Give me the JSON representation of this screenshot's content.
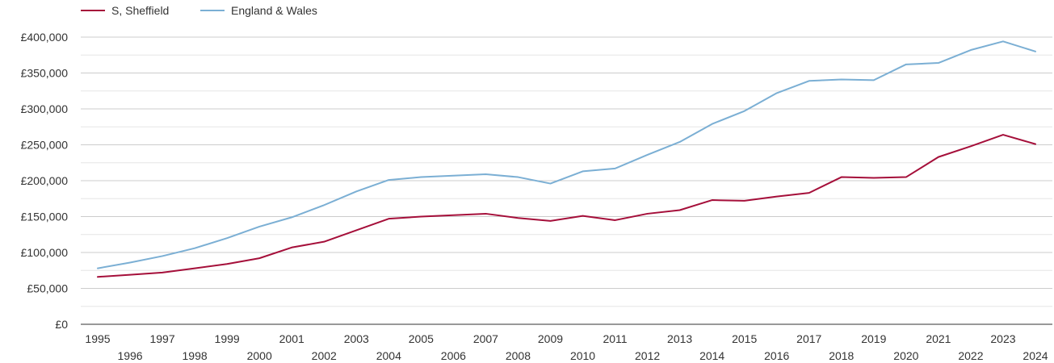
{
  "chart_data": {
    "type": "line",
    "title": "",
    "xlabel": "",
    "ylabel": "",
    "x": [
      1995,
      1996,
      1997,
      1998,
      1999,
      2000,
      2001,
      2002,
      2003,
      2004,
      2005,
      2006,
      2007,
      2008,
      2009,
      2010,
      2011,
      2012,
      2013,
      2014,
      2015,
      2016,
      2017,
      2018,
      2019,
      2020,
      2021,
      2022,
      2023,
      2024
    ],
    "ylim": [
      0,
      400000
    ],
    "y_ticks": [
      0,
      50000,
      100000,
      150000,
      200000,
      250000,
      300000,
      350000,
      400000
    ],
    "y_tick_labels": [
      "£0",
      "£50,000",
      "£100,000",
      "£150,000",
      "£200,000",
      "£250,000",
      "£300,000",
      "£350,000",
      "£400,000"
    ],
    "x_tick_labels": [
      "1995",
      "1996",
      "1997",
      "1998",
      "1999",
      "2000",
      "2001",
      "2002",
      "2003",
      "2004",
      "2005",
      "2006",
      "2007",
      "2008",
      "2009",
      "2010",
      "2011",
      "2012",
      "2013",
      "2014",
      "2015",
      "2016",
      "2017",
      "2018",
      "2019",
      "2020",
      "2021",
      "2022",
      "2023",
      "2024"
    ],
    "grid": true,
    "legend_position": "top-left",
    "series": [
      {
        "name": "S, Sheffield",
        "color": "#a50f3a",
        "values": [
          66000,
          69000,
          72000,
          78000,
          84000,
          92000,
          107000,
          115000,
          131000,
          147000,
          150000,
          152000,
          154000,
          148000,
          144000,
          151000,
          145000,
          154000,
          159000,
          173000,
          172000,
          178000,
          183000,
          205000,
          204000,
          205000,
          233000,
          248000,
          264000,
          251000
        ]
      },
      {
        "name": "England & Wales",
        "color": "#7bafd4",
        "values": [
          78000,
          86000,
          95000,
          106000,
          120000,
          136000,
          149000,
          166000,
          185000,
          201000,
          205000,
          207000,
          209000,
          205000,
          196000,
          213000,
          217000,
          236000,
          254000,
          279000,
          297000,
          322000,
          339000,
          341000,
          340000,
          362000,
          364000,
          382000,
          394000,
          380000
        ]
      }
    ]
  }
}
